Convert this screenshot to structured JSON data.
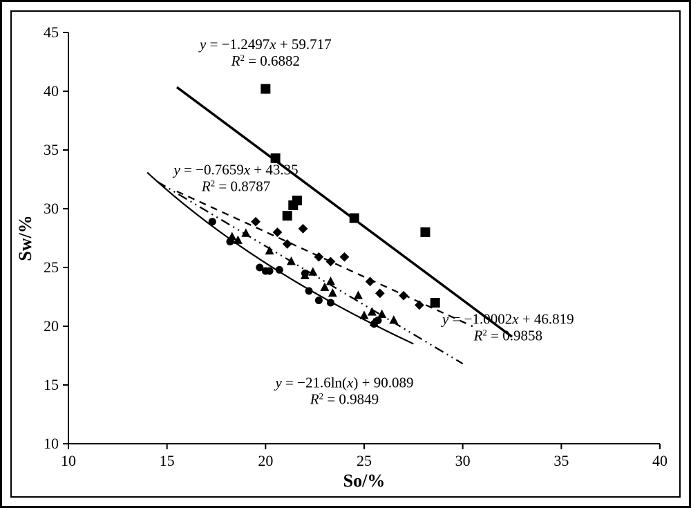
{
  "chart": {
    "type": "scatter",
    "background_color": "#ffffff",
    "border_color": "#000000",
    "outer_border_width": 3,
    "inner_border_width": 2,
    "axis_line_color": "#000000",
    "font_family": "Times New Roman",
    "tick_fontsize": 22,
    "axis_title_fontsize": 26,
    "equation_fontsize": 21,
    "xlabel": "So/%",
    "ylabel": "Sw/%",
    "xlim": [
      10,
      40
    ],
    "ylim": [
      10,
      45
    ],
    "xticks": [
      10,
      15,
      20,
      25,
      30,
      35,
      40
    ],
    "yticks": [
      10,
      15,
      20,
      25,
      30,
      35,
      40,
      45
    ],
    "series": [
      {
        "name": "series_squares",
        "marker": "square",
        "marker_size": 14,
        "color": "#000000",
        "data": [
          [
            20.0,
            40.2
          ],
          [
            20.5,
            34.3
          ],
          [
            21.1,
            29.4
          ],
          [
            21.4,
            30.3
          ],
          [
            21.6,
            30.7
          ],
          [
            24.5,
            29.2
          ],
          [
            28.1,
            28.0
          ],
          [
            28.6,
            22.0
          ]
        ],
        "fit": {
          "line_style": "solid",
          "line_width": 3.5,
          "x_range": [
            15.5,
            32.5
          ],
          "equation_plain": "y = -1.2497x + 59.717",
          "equation_slope": -1.2497,
          "equation_intercept": 59.717,
          "r2_label": "R² = 0.6882",
          "r2": 0.6882,
          "label_anchor": [
            20.0,
            43.6
          ]
        }
      },
      {
        "name": "series_diamonds",
        "marker": "diamond",
        "marker_size": 11,
        "color": "#000000",
        "data": [
          [
            19.5,
            28.9
          ],
          [
            20.6,
            28.0
          ],
          [
            21.1,
            27.0
          ],
          [
            21.9,
            28.3
          ],
          [
            22.7,
            25.9
          ],
          [
            23.3,
            25.5
          ],
          [
            24.0,
            25.9
          ],
          [
            25.3,
            23.8
          ],
          [
            25.8,
            22.8
          ],
          [
            27.0,
            22.6
          ],
          [
            27.8,
            21.8
          ]
        ],
        "fit": {
          "line_style": "dashed",
          "line_width": 2.3,
          "dash_pattern": "10,8",
          "x_range": [
            15.5,
            30.5
          ],
          "equation_plain": "y = -0.7659x + 43.35",
          "equation_slope": -0.7659,
          "equation_intercept": 43.35,
          "r2_label": "R² = 0.8787",
          "r2": 0.8787,
          "label_anchor": [
            18.5,
            32.9
          ]
        }
      },
      {
        "name": "series_triangles",
        "marker": "triangle",
        "marker_size": 11,
        "color": "#000000",
        "data": [
          [
            18.3,
            27.6
          ],
          [
            18.6,
            27.3
          ],
          [
            19.0,
            27.9
          ],
          [
            20.2,
            26.4
          ],
          [
            21.3,
            25.5
          ],
          [
            22.0,
            24.3
          ],
          [
            22.4,
            24.6
          ],
          [
            23.0,
            23.3
          ],
          [
            23.3,
            23.8
          ],
          [
            23.4,
            22.8
          ],
          [
            24.7,
            22.6
          ],
          [
            25.0,
            20.9
          ],
          [
            25.4,
            21.2
          ],
          [
            25.5,
            20.3
          ],
          [
            25.9,
            21.0
          ],
          [
            26.5,
            20.5
          ]
        ],
        "fit": {
          "line_style": "dash-dot-dot",
          "line_width": 2.3,
          "dash_pattern": "14,6,2,6,2,6",
          "x_range": [
            14.5,
            30.0
          ],
          "equation_plain": "y = -1.0002x + 46.819",
          "equation_slope": -1.0002,
          "equation_intercept": 46.819,
          "r2_label": "R² = 0.9858",
          "r2": 0.9858,
          "label_anchor": [
            32.3,
            20.2
          ]
        }
      },
      {
        "name": "series_circles",
        "marker": "circle",
        "marker_size": 11,
        "color": "#000000",
        "data": [
          [
            17.3,
            28.9
          ],
          [
            18.2,
            27.2
          ],
          [
            19.7,
            25.0
          ],
          [
            20.0,
            24.7
          ],
          [
            20.2,
            24.7
          ],
          [
            20.7,
            24.8
          ],
          [
            22.0,
            24.5
          ],
          [
            22.2,
            23.0
          ],
          [
            22.7,
            22.2
          ],
          [
            23.3,
            22.0
          ],
          [
            25.5,
            20.2
          ],
          [
            25.7,
            20.5
          ]
        ],
        "fit": {
          "line_style": "solid",
          "line_width": 2.2,
          "type": "log",
          "equation_plain": "y = -21.6ln(x) + 90.089",
          "equation_a": -21.6,
          "equation_b": 90.089,
          "x_range": [
            14.0,
            27.5
          ],
          "r2_label": "R² = 0.9849",
          "r2": 0.9849,
          "label_anchor": [
            24.0,
            14.8
          ]
        }
      }
    ]
  }
}
